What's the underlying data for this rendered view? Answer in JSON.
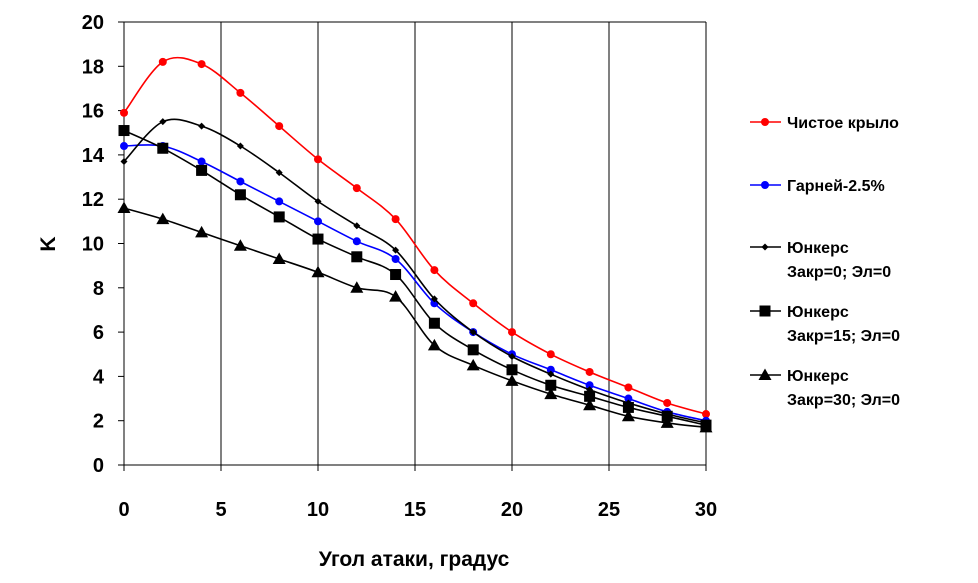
{
  "chart_data": {
    "type": "line",
    "xlabel": "Угол атаки, градус",
    "ylabel": "K",
    "xlim": [
      0,
      30
    ],
    "ylim": [
      0,
      20
    ],
    "x_ticks": [
      "0",
      "5",
      "10",
      "15",
      "20",
      "25",
      "30"
    ],
    "y_ticks": [
      "0",
      "2",
      "4",
      "6",
      "8",
      "10",
      "12",
      "14",
      "16",
      "18",
      "20"
    ],
    "grid": "vertical",
    "legend_position": "right",
    "x": [
      0,
      2,
      4,
      6,
      8,
      10,
      12,
      14,
      16,
      18,
      20,
      22,
      24,
      26,
      28,
      30
    ],
    "series": [
      {
        "name": "Чистое крыло",
        "legend_lines": [
          "Чистое крыло"
        ],
        "color": "#ff0000",
        "marker": "circle",
        "values": [
          15.9,
          18.2,
          18.1,
          16.8,
          15.3,
          13.8,
          12.5,
          11.1,
          8.8,
          7.3,
          6.0,
          5.0,
          4.2,
          3.5,
          2.8,
          2.3
        ]
      },
      {
        "name": "Гарней-2.5%",
        "legend_lines": [
          "Гарней-2.5%"
        ],
        "color": "#0000ff",
        "marker": "circle",
        "values": [
          14.4,
          14.4,
          13.7,
          12.8,
          11.9,
          11.0,
          10.1,
          9.3,
          7.3,
          6.0,
          5.0,
          4.3,
          3.6,
          3.0,
          2.4,
          2.0
        ]
      },
      {
        "name": "Юнкерс Закр=0; Эл=0",
        "legend_lines": [
          "Юнкерс",
          "Закр=0; Эл=0"
        ],
        "color": "#000000",
        "marker": "diamond",
        "values": [
          13.7,
          15.5,
          15.3,
          14.4,
          13.2,
          11.9,
          10.8,
          9.7,
          7.5,
          6.0,
          4.9,
          4.1,
          3.4,
          2.8,
          2.3,
          1.9
        ]
      },
      {
        "name": "Юнкерс Закр=15; Эл=0",
        "legend_lines": [
          "Юнкерс",
          "Закр=15; Эл=0"
        ],
        "color": "#000000",
        "marker": "square",
        "values": [
          15.1,
          14.3,
          13.3,
          12.2,
          11.2,
          10.2,
          9.4,
          8.6,
          6.4,
          5.2,
          4.3,
          3.6,
          3.1,
          2.6,
          2.2,
          1.8
        ]
      },
      {
        "name": "Юнкерс Закр=30; Эл=0",
        "legend_lines": [
          "Юнкерс",
          "Закр=30; Эл=0"
        ],
        "color": "#000000",
        "marker": "triangle",
        "values": [
          11.6,
          11.1,
          10.5,
          9.9,
          9.3,
          8.7,
          8.0,
          7.6,
          5.4,
          4.5,
          3.8,
          3.2,
          2.7,
          2.2,
          1.9,
          1.7
        ]
      }
    ]
  }
}
